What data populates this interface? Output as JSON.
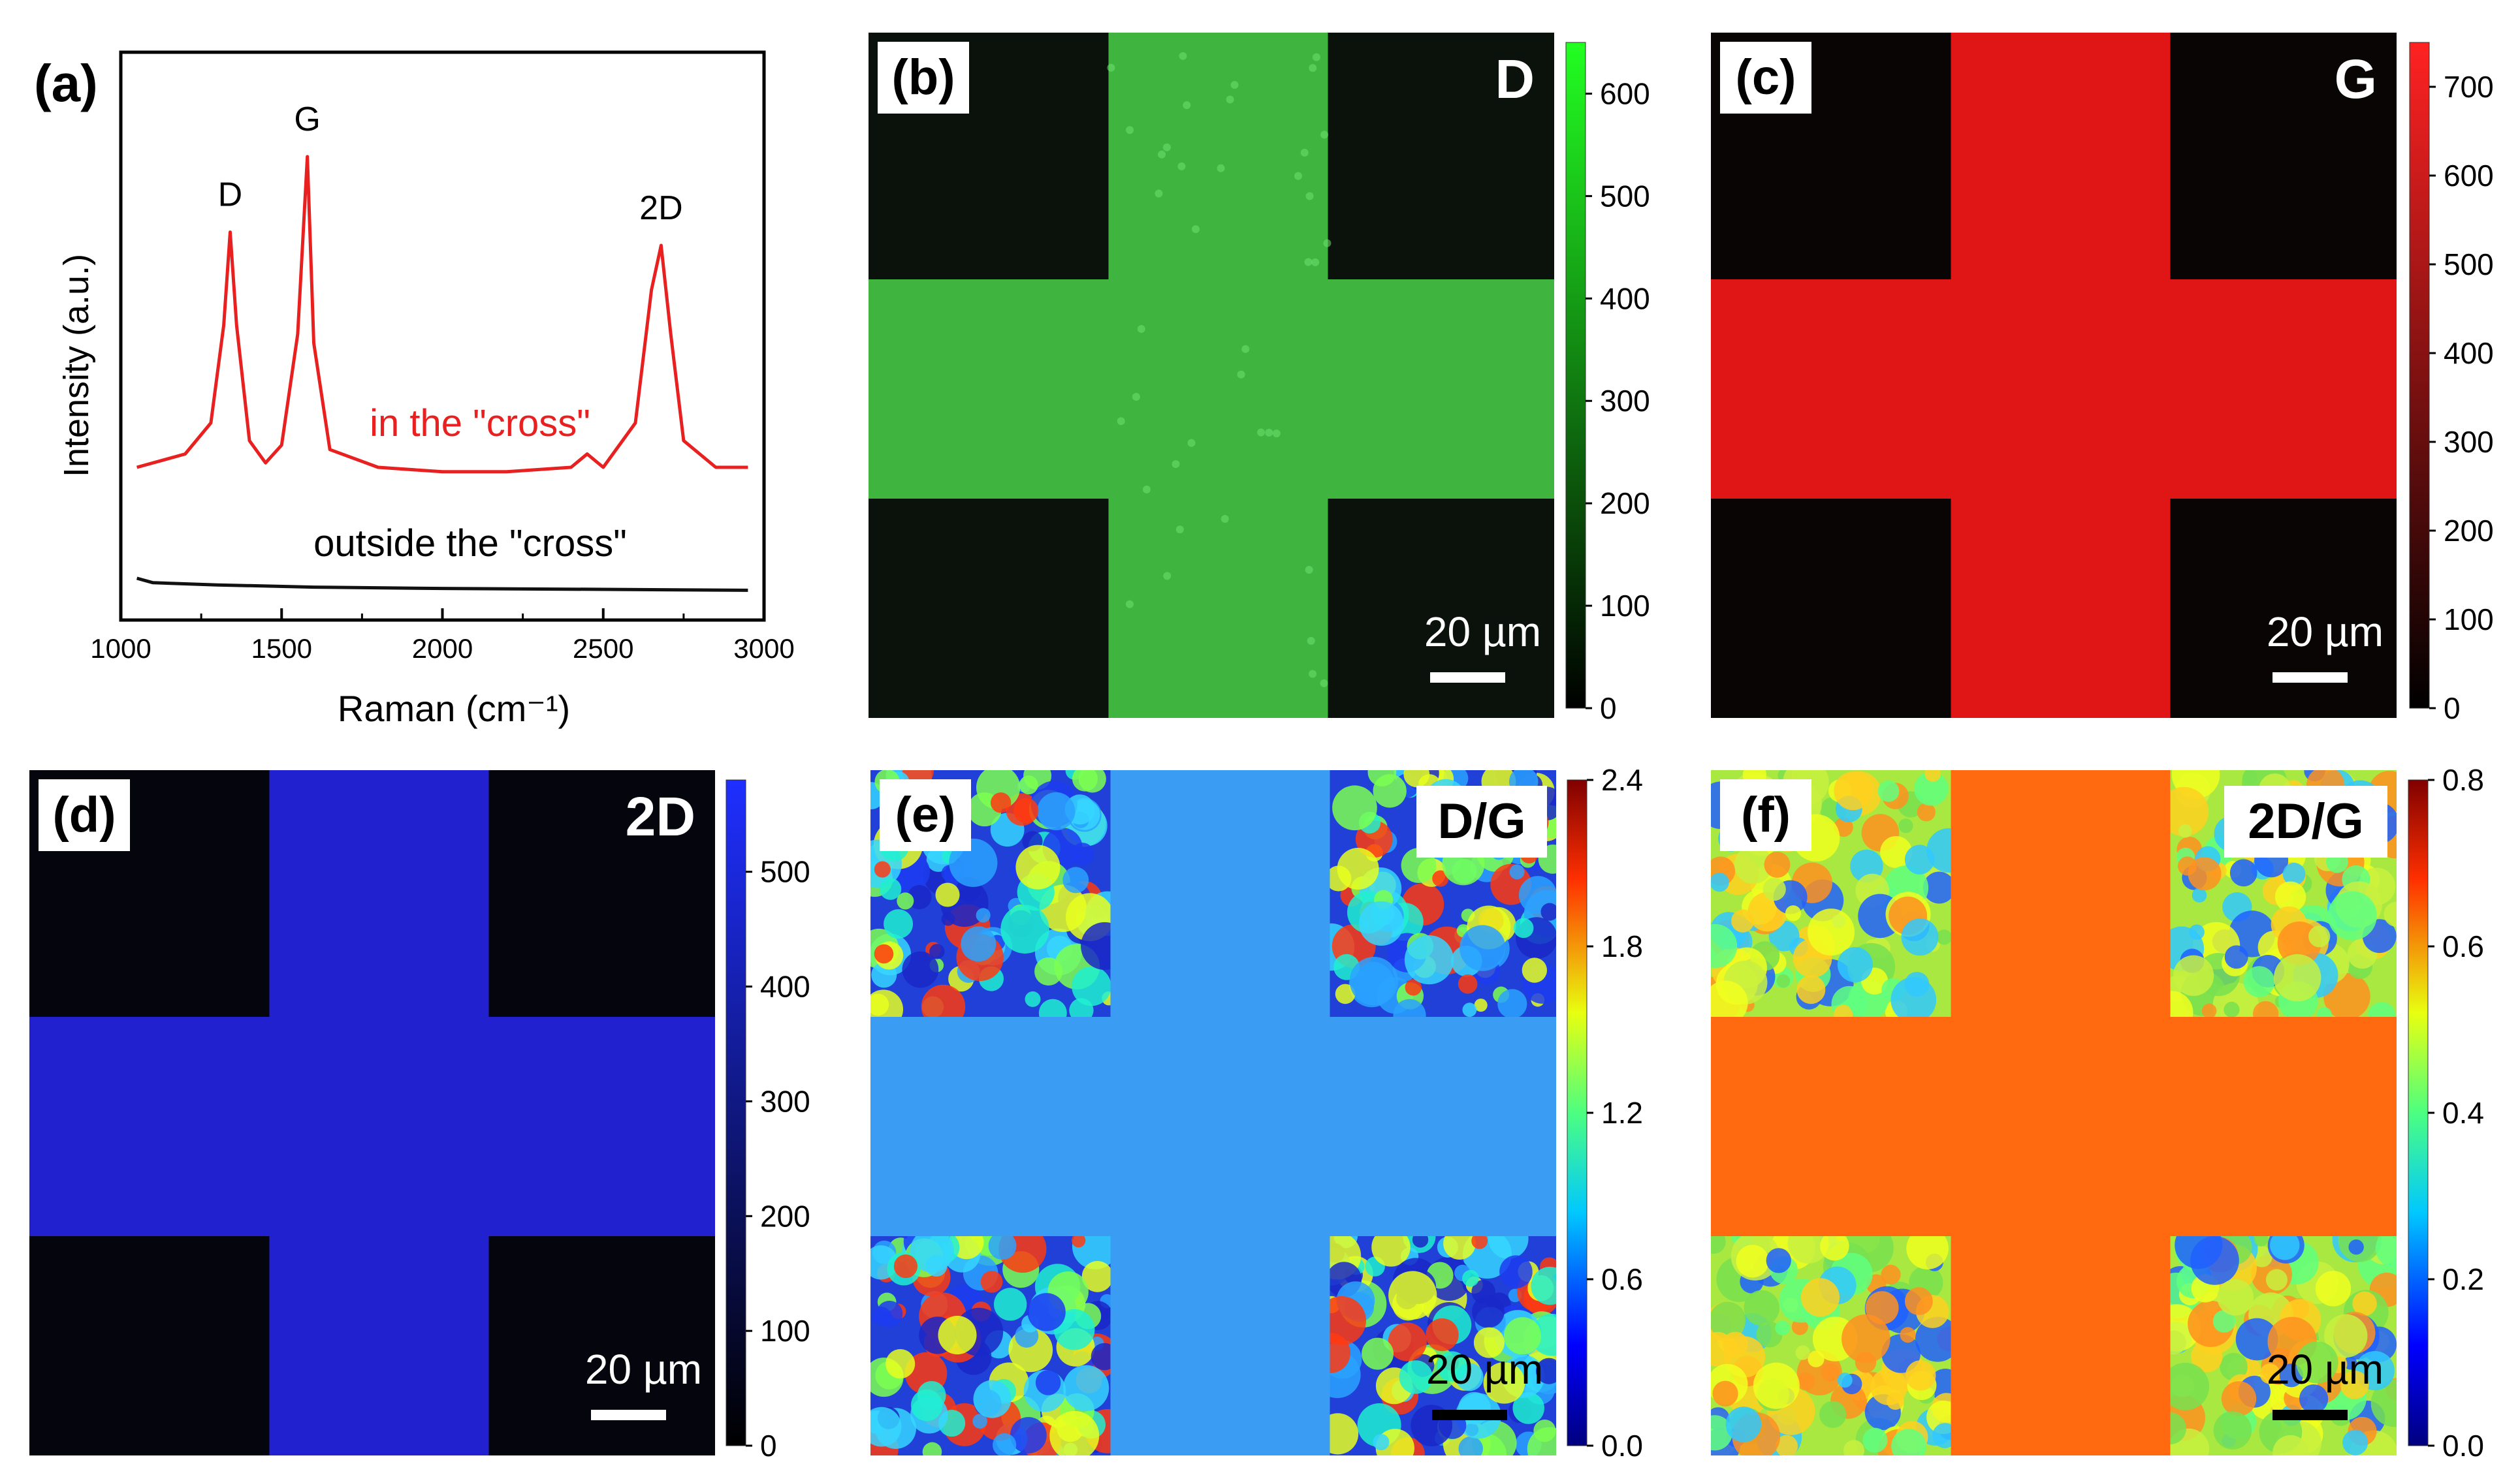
{
  "figure": {
    "panel_a": {
      "label": "(a)",
      "ylabel": "Intensity (a.u.)",
      "xlabel": "Raman (cm⁻¹)",
      "xticks": [
        "1000",
        "1500",
        "2000",
        "2500",
        "3000"
      ],
      "peak_labels": [
        "D",
        "G",
        "2D"
      ],
      "curve_labels": {
        "inside": "in the \"cross\"",
        "outside": "outside the \"cross\""
      },
      "colors": {
        "inside": "#e8201f",
        "outside": "#111111"
      }
    },
    "panels": [
      {
        "id": "b",
        "label": "(b)",
        "title": "D",
        "scale_bar": "20 µm",
        "colormap": "green",
        "ticks": [
          "0",
          "100",
          "200",
          "300",
          "400",
          "500",
          "600"
        ],
        "cbar_max": 650,
        "cross": 0.55,
        "ratio": false
      },
      {
        "id": "c",
        "label": "(c)",
        "title": "G",
        "scale_bar": "20 µm",
        "colormap": "red",
        "ticks": [
          "0",
          "100",
          "200",
          "300",
          "400",
          "500",
          "600",
          "700"
        ],
        "cbar_max": 750,
        "cross": 0.78,
        "ratio": false
      },
      {
        "id": "d",
        "label": "(d)",
        "title": "2D",
        "scale_bar": "20 µm",
        "colormap": "blue",
        "ticks": [
          "0",
          "100",
          "200",
          "300",
          "400",
          "500"
        ],
        "cbar_max": 580,
        "cross": 0.78,
        "ratio": false
      },
      {
        "id": "e",
        "label": "(e)",
        "title": "D/G",
        "scale_bar": "20 µm",
        "colormap": "jet",
        "ticks": [
          "0.0",
          "0.6",
          "1.2",
          "1.8",
          "2.4"
        ],
        "cbar_max": 2.4,
        "cross": 0.33,
        "ratio": true
      },
      {
        "id": "f",
        "label": "(f)",
        "title": "2D/G",
        "scale_bar": "20 µm",
        "colormap": "jet",
        "ticks": [
          "0.0",
          "0.2",
          "0.4",
          "0.6",
          "0.8"
        ],
        "cbar_max": 0.8,
        "cross": 0.85,
        "ratio": true
      }
    ]
  },
  "chart_data": {
    "type": "line",
    "title": "",
    "xlabel": "Raman (cm⁻¹)",
    "ylabel": "Intensity (a.u.)",
    "xlim": [
      1000,
      3000
    ],
    "series": [
      {
        "name": "in the \"cross\"",
        "x": [
          1050,
          1200,
          1280,
          1320,
          1340,
          1360,
          1400,
          1450,
          1500,
          1550,
          1580,
          1600,
          1650,
          1800,
          2000,
          2200,
          2400,
          2450,
          2500,
          2600,
          2650,
          2680,
          2710,
          2750,
          2850,
          2950
        ],
        "y": [
          0.3,
          0.33,
          0.4,
          0.62,
          0.83,
          0.62,
          0.36,
          0.31,
          0.35,
          0.6,
          1.0,
          0.58,
          0.34,
          0.3,
          0.29,
          0.29,
          0.3,
          0.33,
          0.3,
          0.4,
          0.7,
          0.8,
          0.6,
          0.36,
          0.3,
          0.3
        ]
      },
      {
        "name": "outside the \"cross\"",
        "x": [
          1050,
          1100,
          1300,
          1600,
          2000,
          2500,
          2950
        ],
        "y": [
          0.05,
          0.04,
          0.035,
          0.03,
          0.027,
          0.025,
          0.023
        ]
      }
    ],
    "peaks": [
      {
        "label": "D",
        "x": 1340
      },
      {
        "label": "G",
        "x": 1580
      },
      {
        "label": "2D",
        "x": 2680
      }
    ]
  }
}
